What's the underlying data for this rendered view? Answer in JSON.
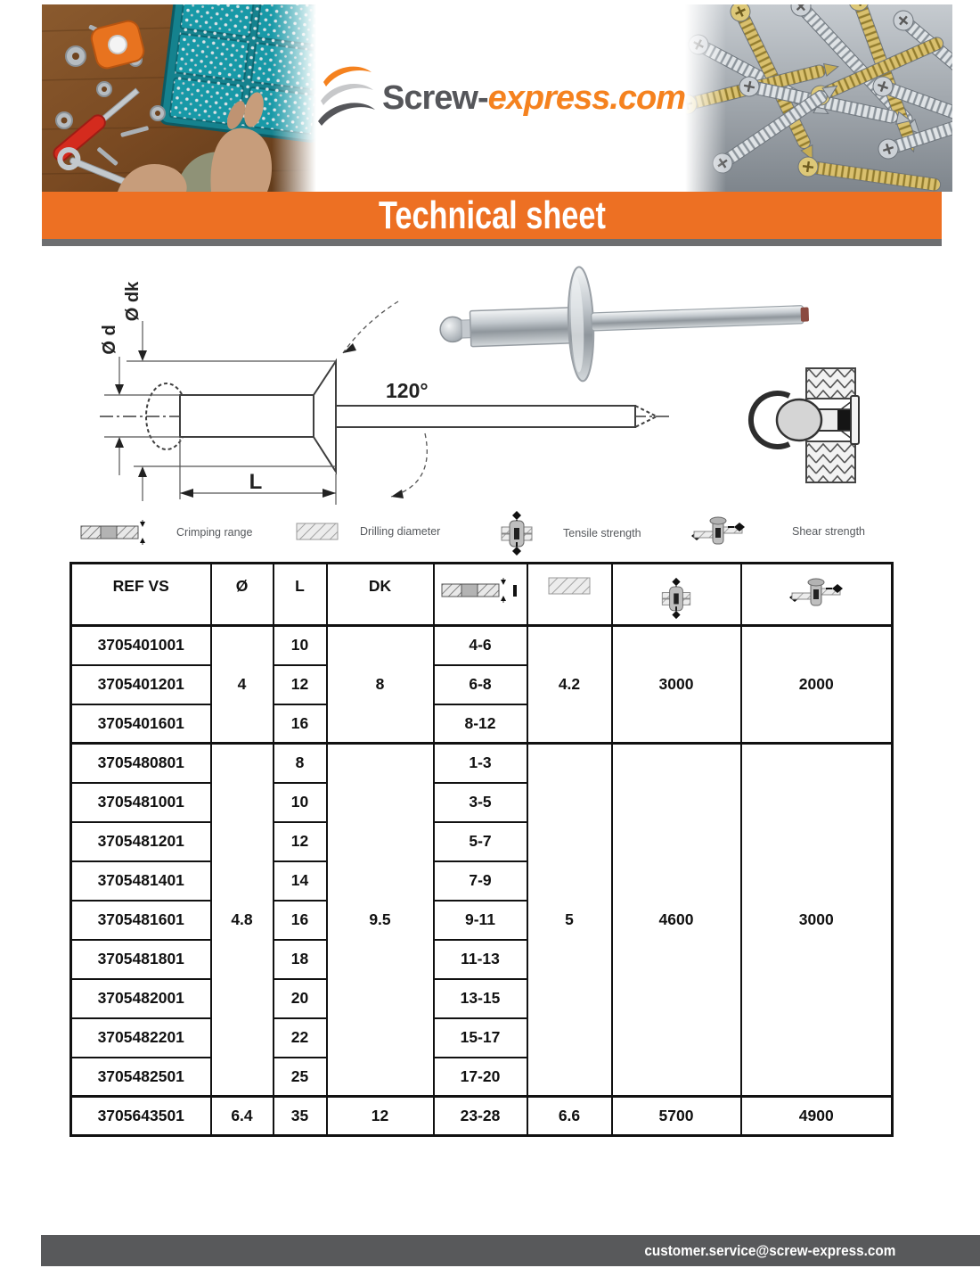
{
  "logo": {
    "text_dark": "Screw-",
    "text_orange": "express.com",
    "arc_colors": [
      "#F5821F",
      "#C7C8CA",
      "#55565A"
    ]
  },
  "banner": {
    "title": "Technical sheet",
    "bg": "#ED7023"
  },
  "drawing": {
    "labels": {
      "d": "Ø d",
      "dk": "Ø dk",
      "length": "L",
      "angle": "120°"
    }
  },
  "legend": {
    "items": [
      {
        "icon": "crimping-range-icon",
        "label": "Crimping range"
      },
      {
        "icon": "drilling-diameter-icon",
        "label": "Drilling diameter"
      },
      {
        "icon": "tensile-strength-icon",
        "label": "Tensile strength"
      },
      {
        "icon": "shear-strength-icon",
        "label": "Shear strength"
      }
    ]
  },
  "table": {
    "headers": [
      "REF VS",
      "Ø",
      "L",
      "DK"
    ],
    "header_icons": [
      "crimping-range-icon",
      "drilling-diameter-icon",
      "tensile-strength-icon",
      "shear-strength-icon"
    ],
    "groups": [
      {
        "diameter": "4",
        "dk": "8",
        "drill": "4.2",
        "tensile": "3000",
        "shear": "2000",
        "rows": [
          {
            "ref": "3705401001",
            "l": "10",
            "crimp": "4-6"
          },
          {
            "ref": "3705401201",
            "l": "12",
            "crimp": "6-8"
          },
          {
            "ref": "3705401601",
            "l": "16",
            "crimp": "8-12"
          }
        ]
      },
      {
        "diameter": "4.8",
        "dk": "9.5",
        "drill": "5",
        "tensile": "4600",
        "shear": "3000",
        "rows": [
          {
            "ref": "3705480801",
            "l": "8",
            "crimp": "1-3"
          },
          {
            "ref": "3705481001",
            "l": "10",
            "crimp": "3-5"
          },
          {
            "ref": "3705481201",
            "l": "12",
            "crimp": "5-7"
          },
          {
            "ref": "3705481401",
            "l": "14",
            "crimp": "7-9"
          },
          {
            "ref": "3705481601",
            "l": "16",
            "crimp": "9-11"
          },
          {
            "ref": "3705481801",
            "l": "18",
            "crimp": "11-13"
          },
          {
            "ref": "3705482001",
            "l": "20",
            "crimp": "13-15"
          },
          {
            "ref": "3705482201",
            "l": "22",
            "crimp": "15-17"
          },
          {
            "ref": "3705482501",
            "l": "25",
            "crimp": "17-20"
          }
        ]
      },
      {
        "diameter": "6.4",
        "dk": "12",
        "drill": "6.6",
        "tensile": "5700",
        "shear": "4900",
        "rows": [
          {
            "ref": "3705643501",
            "l": "35",
            "crimp": "23-28"
          }
        ]
      }
    ]
  },
  "footer": {
    "email": "customer.service@screw-express.com",
    "bg": "#58595B"
  }
}
